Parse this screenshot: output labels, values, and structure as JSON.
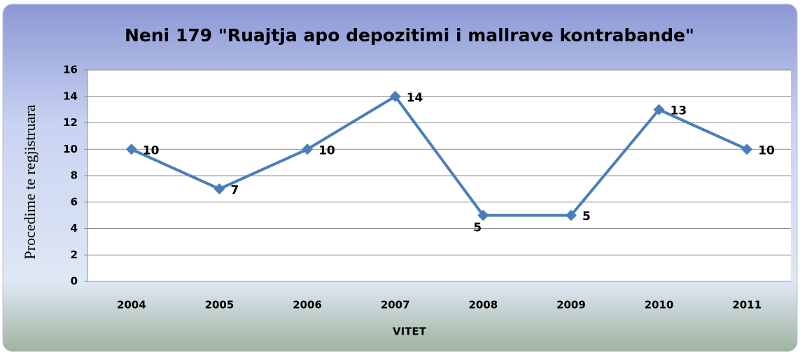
{
  "chart_data": {
    "type": "line",
    "title": "Neni 179 \"Ruajtja apo depozitimi i mallrave kontrabande\"",
    "xlabel": "VITET",
    "ylabel": "Procedime te regjistruara",
    "categories": [
      "2004",
      "2005",
      "2006",
      "2007",
      "2008",
      "2009",
      "2010",
      "2011"
    ],
    "values": [
      10,
      7,
      10,
      14,
      5,
      5,
      13,
      10
    ],
    "color": "#4a7ebb",
    "ylim": [
      0,
      16
    ],
    "yticks": [
      0,
      2,
      4,
      6,
      8,
      10,
      12,
      14,
      16
    ],
    "grid": true
  }
}
